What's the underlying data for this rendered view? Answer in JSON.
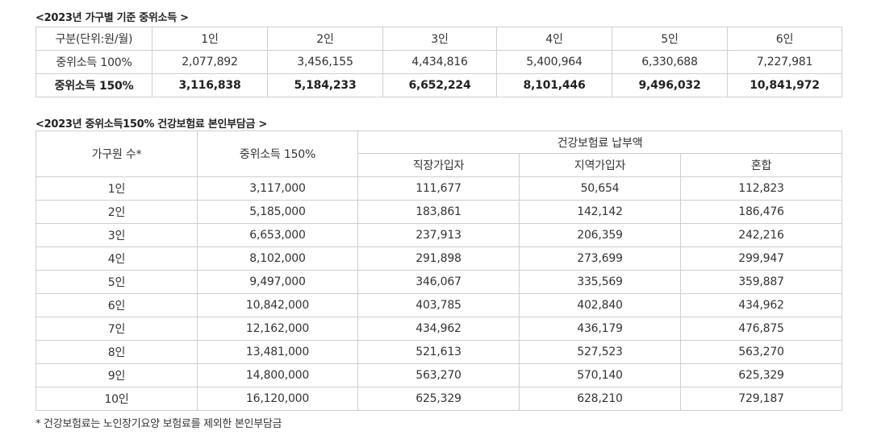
{
  "income": {
    "title": "<2023년 가구별 기준 중위소득 >",
    "header": [
      "구분(단위:원/월)",
      "1인",
      "2인",
      "3인",
      "4인",
      "5인",
      "6인"
    ],
    "rows": [
      [
        "중위소득 100%",
        "2,077,892",
        "3,456,155",
        "4,434,816",
        "5,400,964",
        "6,330,688",
        "7,227,981"
      ],
      [
        "중위소득 150%",
        "3,116,838",
        "5,184,233",
        "6,652,224",
        "8,101,446",
        "9,496,032",
        "10,841,972"
      ]
    ]
  },
  "insurance": {
    "title": "<2023년 중위소득150% 건강보험료 본인부담금 >",
    "head": {
      "members": "가구원 수*",
      "income": "중위소득 150%",
      "premium": "건강보험료 납부액",
      "workplace": "직장가입자",
      "regional": "지역가입자",
      "mixed": "혼합"
    },
    "rows": [
      [
        "1인",
        "3,117,000",
        "111,677",
        "50,654",
        "112,823"
      ],
      [
        "2인",
        "5,185,000",
        "183,861",
        "142,142",
        "186,476"
      ],
      [
        "3인",
        "6,653,000",
        "237,913",
        "206,359",
        "242,216"
      ],
      [
        "4인",
        "8,102,000",
        "291,898",
        "273,699",
        "299,947"
      ],
      [
        "5인",
        "9,497,000",
        "346,067",
        "335,569",
        "359,887"
      ],
      [
        "6인",
        "10,842,000",
        "403,785",
        "402,840",
        "434,962"
      ],
      [
        "7인",
        "12,162,000",
        "434,962",
        "436,179",
        "476,875"
      ],
      [
        "8인",
        "13,481,000",
        "521,613",
        "527,523",
        "563,270"
      ],
      [
        "9인",
        "14,800,000",
        "563,270",
        "570,140",
        "625,329"
      ],
      [
        "10인",
        "16,120,000",
        "625,329",
        "628,210",
        "729,187"
      ]
    ],
    "footnote": "* 건강보험료는 노인장기요양 보험료를 제외한 본인부담금"
  }
}
